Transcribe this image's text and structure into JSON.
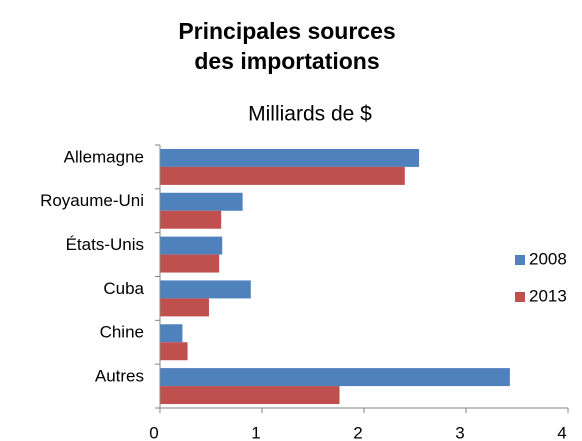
{
  "chart_data": {
    "type": "hbar",
    "title": [
      "Principales sources",
      "des importations"
    ],
    "subtitle": "Milliards de $",
    "categories": [
      "Allemagne",
      "Royaume-Uni",
      "États-Unis",
      "Cuba",
      "Chine",
      "Autres"
    ],
    "series": [
      {
        "name": "2008",
        "color": "#4f81bd",
        "values": [
          2.54,
          0.81,
          0.61,
          0.89,
          0.22,
          3.43
        ]
      },
      {
        "name": "2013",
        "color": "#c0504d",
        "values": [
          2.4,
          0.6,
          0.58,
          0.48,
          0.27,
          1.76
        ]
      }
    ],
    "xlim": [
      0,
      4
    ],
    "xticks": [
      0,
      1,
      2,
      3,
      4
    ],
    "grid": false,
    "legend": "right"
  }
}
